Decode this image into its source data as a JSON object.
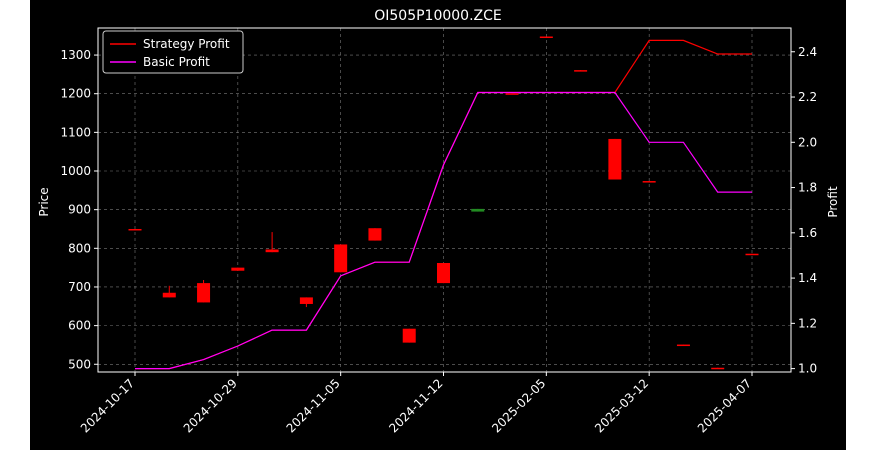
{
  "chart_data": {
    "type": "candlestick",
    "title": "OI505P10000.ZCE",
    "ylabel_left": "Price",
    "ylabel_right": "Profit",
    "ylim_left": [
      480,
      1370
    ],
    "ylim_right": [
      0.985,
      2.505
    ],
    "yticks_left": [
      500,
      600,
      700,
      800,
      900,
      1000,
      1100,
      1200,
      1300
    ],
    "yticks_right": [
      1.0,
      1.2,
      1.4,
      1.6,
      1.8,
      2.0,
      2.2,
      2.4
    ],
    "yticks_right_labels": [
      "1.0",
      "1.2",
      "1.4",
      "1.6",
      "1.8",
      "2.0",
      "2.2",
      "2.4"
    ],
    "xticks": [
      {
        "index": 0,
        "label": "2024-10-17"
      },
      {
        "index": 3,
        "label": "2024-10-29"
      },
      {
        "index": 6,
        "label": "2024-11-05"
      },
      {
        "index": 9,
        "label": "2024-11-12"
      },
      {
        "index": 12,
        "label": "2025-02-05"
      },
      {
        "index": 15,
        "label": "2025-03-12"
      },
      {
        "index": 18,
        "label": "2025-04-07"
      }
    ],
    "grid": true,
    "legend": {
      "position": "upper-left",
      "entries": [
        {
          "name": "Strategy Profit",
          "color": "#ff0000"
        },
        {
          "name": "Basic Profit",
          "color": "#ff00ff"
        }
      ]
    },
    "candles": [
      {
        "open": 848,
        "close": 850,
        "high": 850,
        "low": 848,
        "color": "#ff0000"
      },
      {
        "open": 685,
        "close": 673,
        "high": 703,
        "low": 673,
        "color": "#ff0000"
      },
      {
        "open": 710,
        "close": 660,
        "high": 718,
        "low": 660,
        "color": "#ff0000"
      },
      {
        "open": 750,
        "close": 742,
        "high": 750,
        "low": 742,
        "color": "#ff0000"
      },
      {
        "open": 797,
        "close": 790,
        "high": 842,
        "low": 790,
        "color": "#ff0000"
      },
      {
        "open": 673,
        "close": 656,
        "high": 673,
        "low": 648,
        "color": "#ff0000"
      },
      {
        "open": 810,
        "close": 738,
        "high": 810,
        "low": 738,
        "color": "#ff0000"
      },
      {
        "open": 852,
        "close": 820,
        "high": 852,
        "low": 820,
        "color": "#ff0000"
      },
      {
        "open": 592,
        "close": 556,
        "high": 592,
        "low": 556,
        "color": "#ff0000"
      },
      {
        "open": 762,
        "close": 710,
        "high": 762,
        "low": 710,
        "color": "#ff0000"
      },
      {
        "open": 902,
        "close": 895,
        "high": 902,
        "low": 895,
        "color": "#228b22"
      },
      {
        "open": 1201,
        "close": 1199,
        "high": 1201,
        "low": 1199,
        "color": "#ff0000"
      },
      {
        "open": 1348,
        "close": 1346,
        "high": 1348,
        "low": 1346,
        "color": "#ff0000"
      },
      {
        "open": 1261,
        "close": 1259,
        "high": 1261,
        "low": 1259,
        "color": "#ff0000"
      },
      {
        "open": 1083,
        "close": 978,
        "high": 1083,
        "low": 978,
        "color": "#ff0000"
      },
      {
        "open": 974,
        "close": 972,
        "high": 974,
        "low": 972,
        "color": "#ff0000"
      },
      {
        "open": 551,
        "close": 549,
        "high": 551,
        "low": 549,
        "color": "#ff0000"
      },
      {
        "open": 491,
        "close": 489,
        "high": 491,
        "low": 489,
        "color": "#ff0000"
      },
      {
        "open": 786,
        "close": 784,
        "high": 786,
        "low": 784,
        "color": "#ff0000"
      }
    ],
    "series": [
      {
        "name": "Strategy Profit",
        "color": "#ff0000",
        "values": [
          1.0,
          1.0,
          1.04,
          1.1,
          1.17,
          1.17,
          1.41,
          1.47,
          1.47,
          1.9,
          2.22,
          2.22,
          2.22,
          2.22,
          2.22,
          2.45,
          2.45,
          2.39,
          2.39
        ]
      },
      {
        "name": "Basic Profit",
        "color": "#ff00ff",
        "values": [
          1.0,
          1.0,
          1.04,
          1.1,
          1.17,
          1.17,
          1.41,
          1.47,
          1.47,
          1.9,
          2.22,
          2.22,
          2.22,
          2.22,
          2.22,
          2.0,
          2.0,
          1.78,
          1.78
        ]
      }
    ]
  }
}
